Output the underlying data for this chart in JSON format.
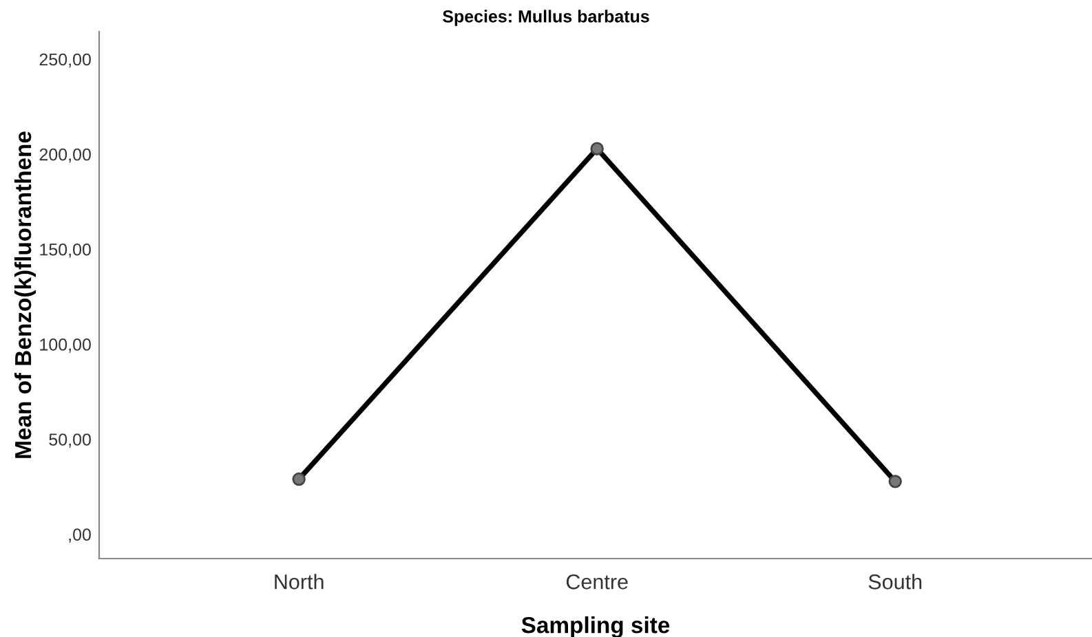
{
  "chart_data": {
    "type": "line",
    "title": "Species: Mullus barbatus",
    "xlabel": "Sampling site",
    "ylabel": "Mean of Benzo(k)fluoranthene",
    "categories": [
      "North",
      "Centre",
      "South"
    ],
    "series": [
      {
        "color": "#000000",
        "values": [
          29.0,
          202.9,
          27.8
        ]
      }
    ],
    "ylim": [
      -12.8,
      264.5
    ],
    "yticks": [
      {
        "value": 0,
        "label": ",00"
      },
      {
        "value": 50,
        "label": "50,00"
      },
      {
        "value": 100,
        "label": "100,00"
      },
      {
        "value": 150,
        "label": "150,00"
      },
      {
        "value": 200,
        "label": "200,00"
      },
      {
        "value": 250,
        "label": "250,00"
      }
    ],
    "marker": "circle",
    "line_style": "solid",
    "grid": false,
    "legend": false
  }
}
